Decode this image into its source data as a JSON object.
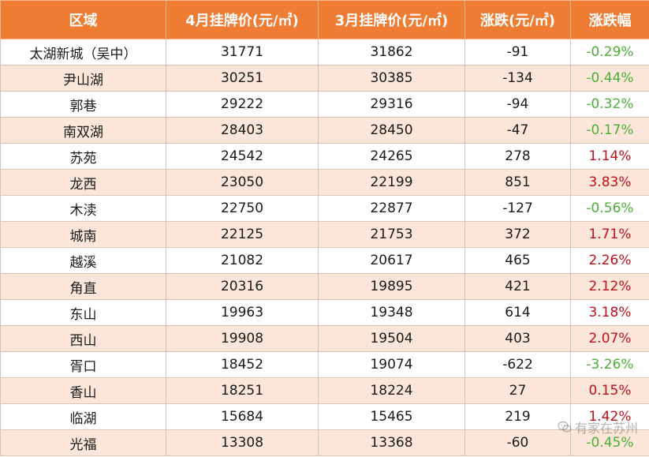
{
  "table": {
    "headers": [
      "区域",
      "4月挂牌价(元/㎡)",
      "3月挂牌价(元/㎡)",
      "涨跌(元/㎡)",
      "涨跌幅"
    ],
    "rows": [
      {
        "area": "太湖新城（吴中）",
        "apr": "31771",
        "mar": "31862",
        "chg": "-91",
        "pct": "-0.29%",
        "dir": "down"
      },
      {
        "area": "尹山湖",
        "apr": "30251",
        "mar": "30385",
        "chg": "-134",
        "pct": "-0.44%",
        "dir": "down"
      },
      {
        "area": "郭巷",
        "apr": "29222",
        "mar": "29316",
        "chg": "-94",
        "pct": "-0.32%",
        "dir": "down"
      },
      {
        "area": "南双湖",
        "apr": "28403",
        "mar": "28450",
        "chg": "-47",
        "pct": "-0.17%",
        "dir": "down"
      },
      {
        "area": "苏苑",
        "apr": "24542",
        "mar": "24265",
        "chg": "278",
        "pct": "1.14%",
        "dir": "up"
      },
      {
        "area": "龙西",
        "apr": "23050",
        "mar": "22199",
        "chg": "851",
        "pct": "3.83%",
        "dir": "up"
      },
      {
        "area": "木渎",
        "apr": "22750",
        "mar": "22877",
        "chg": "-127",
        "pct": "-0.56%",
        "dir": "down"
      },
      {
        "area": "城南",
        "apr": "22125",
        "mar": "21753",
        "chg": "372",
        "pct": "1.71%",
        "dir": "up"
      },
      {
        "area": "越溪",
        "apr": "21082",
        "mar": "20617",
        "chg": "465",
        "pct": "2.26%",
        "dir": "up"
      },
      {
        "area": "角直",
        "apr": "20316",
        "mar": "19895",
        "chg": "421",
        "pct": "2.12%",
        "dir": "up"
      },
      {
        "area": "东山",
        "apr": "19963",
        "mar": "19348",
        "chg": "614",
        "pct": "3.18%",
        "dir": "up"
      },
      {
        "area": "西山",
        "apr": "19908",
        "mar": "19504",
        "chg": "403",
        "pct": "2.07%",
        "dir": "up"
      },
      {
        "area": "胥口",
        "apr": "18452",
        "mar": "19074",
        "chg": "-622",
        "pct": "-3.26%",
        "dir": "down"
      },
      {
        "area": "香山",
        "apr": "18251",
        "mar": "18224",
        "chg": "27",
        "pct": "0.15%",
        "dir": "up"
      },
      {
        "area": "临湖",
        "apr": "15684",
        "mar": "15465",
        "chg": "219",
        "pct": "1.42%",
        "dir": "up"
      },
      {
        "area": "光福",
        "apr": "13308",
        "mar": "13368",
        "chg": "-60",
        "pct": "-0.45%",
        "dir": "down"
      }
    ]
  },
  "watermark": {
    "text": "有家在苏州",
    "icon": "wechat-icon"
  },
  "colors": {
    "header_bg": "#ee7d33",
    "stripe_bg": "#fbe6d9",
    "negative": "#4caf3a",
    "positive": "#c0101a"
  }
}
